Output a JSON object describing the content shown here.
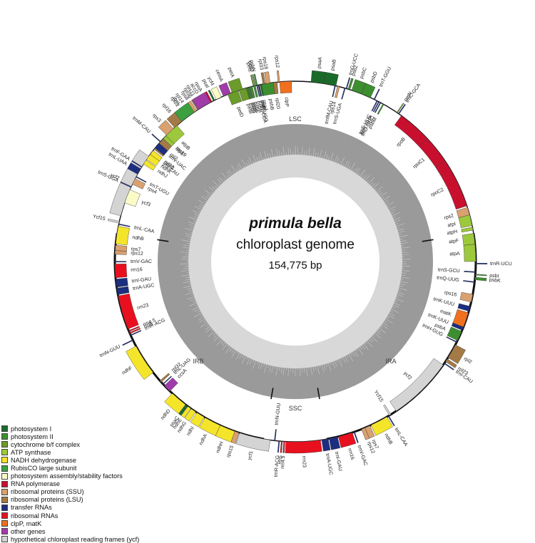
{
  "center": {
    "title": "primula bella",
    "subtitle": "chloroplast genome",
    "size": "154,775 bp"
  },
  "regions": {
    "lsc": "LSC",
    "ira": "IRA",
    "ssc": "SSC",
    "irb": "IRB"
  },
  "colors": {
    "psI": "#1a6b2a",
    "psII": "#3c8f2e",
    "cytb6f": "#6b9b2a",
    "atp": "#9cc83c",
    "ndh": "#f5e52a",
    "rbc": "#3aa040",
    "ycf34": "#fbfbc8",
    "rpo": "#c8102e",
    "rps": "#d9a070",
    "rpl": "#a37a45",
    "trn": "#1c2e80",
    "rrn": "#e8101f",
    "clp": "#f07020",
    "other": "#a03ca8",
    "ycf": "#d4d4d4"
  },
  "legend": [
    {
      "label": "photosystem I",
      "color": "#1a6b2a"
    },
    {
      "label": "photosystem II",
      "color": "#3c8f2e"
    },
    {
      "label": "cytochrome b/f complex",
      "color": "#6b9b2a"
    },
    {
      "label": "ATP synthase",
      "color": "#9cc83c"
    },
    {
      "label": "NADH dehydrogenase",
      "color": "#f5e52a"
    },
    {
      "label": "RubisCO large subunit",
      "color": "#3aa040"
    },
    {
      "label": "photosystem assembly/stability factors",
      "color": "#fbfbc8"
    },
    {
      "label": "RNA polymerase",
      "color": "#c8102e"
    },
    {
      "label": "ribosomal proteins (SSU)",
      "color": "#d9a070"
    },
    {
      "label": "ribosomal proteins (LSU)",
      "color": "#a37a45"
    },
    {
      "label": "transfer RNAs",
      "color": "#1c2e80"
    },
    {
      "label": "ribosomal RNAs",
      "color": "#e8101f"
    },
    {
      "label": "clpP, matK",
      "color": "#f07020"
    },
    {
      "label": "other genes",
      "color": "#a03ca8"
    },
    {
      "label": "hypothetical chloroplast reading frames (ycf)",
      "color": "#d4d4d4"
    }
  ],
  "genes": [
    {
      "name": "psaA",
      "color": "psI",
      "start": 5,
      "end": 9,
      "side": "out"
    },
    {
      "name": "psaB",
      "color": "psI",
      "start": 9,
      "end": 13,
      "side": "out"
    },
    {
      "name": "rps14",
      "color": "rps",
      "start": 13.5,
      "end": 14.2,
      "side": "in"
    },
    {
      "name": "trnfM-CAU",
      "color": "trn",
      "start": 12.6,
      "end": 12.9,
      "side": "in"
    },
    {
      "name": "trnS-UGA",
      "color": "trn",
      "start": 15.8,
      "end": 16.1,
      "side": "in"
    },
    {
      "name": "trnG-UCC",
      "color": "trn",
      "start": 16.3,
      "end": 16.6,
      "side": "out"
    },
    {
      "name": "psbZ",
      "color": "psII",
      "start": 17.0,
      "end": 17.6,
      "side": "out"
    },
    {
      "name": "psbC",
      "color": "psII",
      "start": 18.2,
      "end": 21.5,
      "side": "out"
    },
    {
      "name": "psbD",
      "color": "psII",
      "start": 21.5,
      "end": 24.6,
      "side": "out"
    },
    {
      "name": "trnT-GGU",
      "color": "trn",
      "start": 25.8,
      "end": 26.1,
      "side": "out"
    },
    {
      "name": "trnE-UUC",
      "color": "trn",
      "start": 26.8,
      "end": 27.1,
      "side": "in"
    },
    {
      "name": "trnY-GUA",
      "color": "trn",
      "start": 27.4,
      "end": 27.7,
      "side": "in"
    },
    {
      "name": "trnD-GUC",
      "color": "trn",
      "start": 28.0,
      "end": 28.3,
      "side": "in"
    },
    {
      "name": "psbM",
      "color": "psII",
      "start": 29.0,
      "end": 29.4,
      "side": "in"
    },
    {
      "name": "petN",
      "color": "cytb6f",
      "start": 34.2,
      "end": 34.5,
      "side": "out"
    },
    {
      "name": "trnC-GCA",
      "color": "trn",
      "start": 34.8,
      "end": 35.1,
      "side": "out"
    },
    {
      "name": "rpoB",
      "color": "rpo",
      "start": 36,
      "end": 47,
      "side": "in"
    },
    {
      "name": "rpoC1",
      "color": "rpo",
      "start": 47,
      "end": 56,
      "side": "in"
    },
    {
      "name": "rpoC2",
      "color": "rpo",
      "start": 56,
      "end": 72,
      "side": "in"
    },
    {
      "name": "rps2",
      "color": "rps",
      "start": 72.5,
      "end": 75,
      "side": "in"
    },
    {
      "name": "atpI",
      "color": "atp",
      "start": 75,
      "end": 78.5,
      "side": "in"
    },
    {
      "name": "atpH",
      "color": "atp",
      "start": 79,
      "end": 80,
      "side": "in"
    },
    {
      "name": "atpF",
      "color": "atp",
      "start": 81,
      "end": 84.5,
      "side": "in"
    },
    {
      "name": "atpA",
      "color": "atp",
      "start": 84.5,
      "end": 90,
      "side": "in"
    },
    {
      "name": "trnR-UCU",
      "color": "trn",
      "start": 90.5,
      "end": 90.8,
      "side": "out"
    },
    {
      "name": "psbI",
      "color": "psII",
      "start": 94,
      "end": 94.3,
      "side": "out"
    },
    {
      "name": "psbK",
      "color": "psII",
      "start": 95,
      "end": 95.8,
      "side": "out"
    },
    {
      "name": "trnS-GCU",
      "color": "trn",
      "start": 93.2,
      "end": 93.5,
      "side": "in"
    },
    {
      "name": "trnQ-UUG",
      "color": "trn",
      "start": 96.4,
      "end": 96.7,
      "side": "in"
    },
    {
      "name": "rps16",
      "color": "rps",
      "start": 100.5,
      "end": 103,
      "side": "in"
    },
    {
      "name": "trnK-UUU",
      "color": "trn",
      "start": 104.4,
      "end": 106,
      "side": "in"
    },
    {
      "name": "matK",
      "color": "clp",
      "start": 106.5,
      "end": 111.3,
      "side": "in"
    },
    {
      "name": "trnK-UUU",
      "color": "trn",
      "start": 111.3,
      "end": 112.4,
      "side": "in"
    },
    {
      "name": "psbA",
      "color": "psII",
      "start": 112.8,
      "end": 116,
      "side": "in"
    },
    {
      "name": "trnH-GUG",
      "color": "trn",
      "start": 116.4,
      "end": 116.7,
      "side": "in"
    },
    {
      "name": "rpl2",
      "color": "rpl",
      "start": 117.5,
      "end": 122.2,
      "side": "out"
    },
    {
      "name": "rpl23",
      "color": "rpl",
      "start": 122.7,
      "end": 123.7,
      "side": "out"
    },
    {
      "name": "trnI-CAU",
      "color": "trn",
      "start": 124.2,
      "end": 124.5,
      "side": "out"
    },
    {
      "name": "ycf2",
      "color": "ycf",
      "start": 125,
      "end": 146,
      "side": "in"
    },
    {
      "name": "Ycf15",
      "color": "ycf",
      "start": 148,
      "end": 148.6,
      "side": "in"
    },
    {
      "name": "trnL-CAA",
      "color": "trn",
      "start": 148.8,
      "end": 149.1,
      "side": "out"
    },
    {
      "name": "ndhB",
      "color": "ndh",
      "start": 149.5,
      "end": 155.2,
      "side": "out"
    },
    {
      "name": "rps7",
      "color": "rps",
      "start": 155.6,
      "end": 157.3,
      "side": "out"
    },
    {
      "name": "rps12",
      "color": "rps",
      "start": 157.3,
      "end": 158.5,
      "side": "out"
    },
    {
      "name": "trnV-GAC",
      "color": "trn",
      "start": 160.8,
      "end": 161.1,
      "side": "out"
    },
    {
      "name": "rrn16",
      "color": "rrn",
      "start": 161.6,
      "end": 166.2,
      "side": "out"
    },
    {
      "name": "trnI-GAU",
      "color": "trn",
      "start": 166.5,
      "end": 169.2,
      "side": "out"
    },
    {
      "name": "trnA-UGC",
      "color": "trn",
      "start": 169.5,
      "end": 171.6,
      "side": "out"
    },
    {
      "name": "rrn23",
      "color": "rrn",
      "start": 172,
      "end": 183,
      "side": "out"
    },
    {
      "name": "rrn4.5",
      "color": "rrn",
      "start": 183.3,
      "end": 183.7,
      "side": "out"
    },
    {
      "name": "rrn5",
      "color": "rrn",
      "start": 184.1,
      "end": 184.5,
      "side": "out"
    },
    {
      "name": "trnR-ACG",
      "color": "trn",
      "start": 185,
      "end": 185.3,
      "side": "out"
    },
    {
      "name": "trnN-GUU",
      "color": "trn",
      "start": 186.4,
      "end": 186.7,
      "side": "in"
    },
    {
      "name": "ycf1",
      "color": "ycf",
      "start": 188,
      "end": 198,
      "side": "out"
    },
    {
      "name": "rps15",
      "color": "rps",
      "start": 198.2,
      "end": 199.6,
      "side": "out"
    },
    {
      "name": "ndhH",
      "color": "ndh",
      "start": 199.6,
      "end": 204.6,
      "side": "out"
    },
    {
      "name": "ndhA",
      "color": "ndh",
      "start": 204.6,
      "end": 210,
      "side": "out"
    },
    {
      "name": "ndhI",
      "color": "ndh",
      "start": 210.3,
      "end": 213.1,
      "side": "out"
    },
    {
      "name": "ndhG",
      "color": "ndh",
      "start": 213.5,
      "end": 215.2,
      "side": "out"
    },
    {
      "name": "ndhE",
      "color": "ndh",
      "start": 215.4,
      "end": 216.5,
      "side": "out"
    },
    {
      "name": "psaC",
      "color": "psI",
      "start": 216.6,
      "end": 217.4,
      "side": "out"
    },
    {
      "name": "ndhD",
      "color": "ndh",
      "start": 217.5,
      "end": 223,
      "side": "out"
    },
    {
      "name": "ccsA",
      "color": "other",
      "start": 224,
      "end": 226.5,
      "side": "in"
    },
    {
      "name": "trnL-UAG",
      "color": "trn",
      "start": 227,
      "end": 227.3,
      "side": "in"
    },
    {
      "name": "rpl32",
      "color": "rpl",
      "start": 228,
      "end": 228.6,
      "side": "in"
    },
    {
      "name": "ndhF",
      "color": "ndh",
      "start": 232,
      "end": 242,
      "side": "out"
    },
    {
      "name": "trnN-GUU",
      "color": "trn",
      "start": 244,
      "end": 244.3,
      "side": "out"
    },
    {
      "name": "trnR-ACG",
      "color": "trn",
      "start": 245.7,
      "end": 246,
      "side": "in"
    },
    {
      "name": "rrn5",
      "color": "rrn",
      "start": 246.4,
      "end": 246.8,
      "side": "in"
    },
    {
      "name": "rrn4.5",
      "color": "rrn",
      "start": 247.1,
      "end": 247.5,
      "side": "in"
    },
    {
      "name": "rrn23",
      "color": "rrn",
      "start": 248,
      "end": 259,
      "side": "in"
    },
    {
      "name": "trnA-UGC",
      "color": "trn",
      "start": 259.4,
      "end": 261.5,
      "side": "in"
    },
    {
      "name": "trnI-GAU",
      "color": "trn",
      "start": 261.8,
      "end": 264.4,
      "side": "in"
    },
    {
      "name": "rrn16",
      "color": "rrn",
      "start": 264.8,
      "end": 269.2,
      "side": "in"
    },
    {
      "name": "trnV-GAC",
      "color": "trn",
      "start": 269.8,
      "end": 270.1,
      "side": "in"
    },
    {
      "name": "rps12",
      "color": "rps",
      "start": 272.3,
      "end": 273.5,
      "side": "in"
    },
    {
      "name": "rps7",
      "color": "rps",
      "start": 273.5,
      "end": 275.2,
      "side": "in"
    },
    {
      "name": "ndhB",
      "color": "ndh",
      "start": 275.6,
      "end": 281.3,
      "side": "in"
    },
    {
      "name": "trnL-CAA",
      "color": "trn",
      "start": 281.8,
      "end": 282.1,
      "side": "in"
    },
    {
      "name": "Ycf15",
      "color": "ycf",
      "start": 282.3,
      "end": 282.9,
      "side": "out"
    },
    {
      "name": "ycf2",
      "color": "ycf",
      "start": 284.7,
      "end": 305.7,
      "side": "out"
    },
    {
      "name": "trnI-CAU",
      "color": "trn",
      "start": 306.3,
      "end": 306.6,
      "side": "in"
    },
    {
      "name": "rpl23",
      "color": "rpl",
      "start": 307,
      "end": 308,
      "side": "in"
    },
    {
      "name": "rpl2",
      "color": "rpl",
      "start": 308.5,
      "end": 313,
      "side": "in"
    },
    {
      "name": "rpl16",
      "color": "rpl",
      "start": 318,
      "end": 322,
      "side": "out"
    },
    {
      "name": "rps19",
      "color": "rps",
      "start": 313.5,
      "end": 314.3,
      "side": "in"
    },
    {
      "name": "rps3",
      "color": "rps",
      "start": 314.5,
      "end": 317.5,
      "side": "out"
    },
    {
      "name": "rpl22",
      "color": "rpl",
      "start": 322.4,
      "end": 323.6,
      "side": "out"
    },
    {
      "name": "rpl14",
      "color": "rpl",
      "start": 324,
      "end": 325.4,
      "side": "out"
    },
    {
      "name": "rps8",
      "color": "rps",
      "start": 325.8,
      "end": 326.9,
      "side": "out"
    },
    {
      "name": "rpl36",
      "color": "rpl",
      "start": 327.2,
      "end": 327.6,
      "side": "out"
    },
    {
      "name": "rps11",
      "color": "rps",
      "start": 327.9,
      "end": 329.1,
      "side": "out"
    },
    {
      "name": "rpoA",
      "color": "rpo",
      "start": 329.5,
      "end": 332.5,
      "side": "out"
    },
    {
      "name": "petD",
      "color": "cytb6f",
      "start": 338,
      "end": 341.5,
      "side": "in"
    },
    {
      "name": "petB",
      "color": "cytb6f",
      "start": 341.8,
      "end": 344.8,
      "side": "in"
    },
    {
      "name": "psbH",
      "color": "psII",
      "start": 346.6,
      "end": 347.2,
      "side": "in"
    },
    {
      "name": "psbN",
      "color": "psII",
      "start": 347.5,
      "end": 347.9,
      "side": "out"
    },
    {
      "name": "psbT",
      "color": "psII",
      "start": 348.2,
      "end": 348.6,
      "side": "in"
    },
    {
      "name": "psbB",
      "color": "psII",
      "start": 349,
      "end": 353.6,
      "side": "in"
    }
  ],
  "genes_extra": [
    {
      "name": "clpP",
      "color": "clp",
      "start": 1.2,
      "end": 5.0,
      "side": "in",
      "alt": true
    },
    {
      "name": "rps12",
      "color": "rps",
      "start": 5.0,
      "end": 5.5,
      "side": "out",
      "alt": true
    },
    {
      "name": "rpl20",
      "color": "rpl",
      "start": 5.8,
      "end": 7.0,
      "side": "in",
      "alt": true
    },
    {
      "name": "rps18",
      "color": "rps",
      "start": 8.0,
      "end": 9.3,
      "side": "out",
      "alt": true
    },
    {
      "name": "rpl33",
      "color": "rpl",
      "start": 9.6,
      "end": 10.3,
      "side": "out",
      "alt": true
    },
    {
      "name": "psaJ",
      "color": "psI",
      "start": 10.8,
      "end": 11.2,
      "side": "in",
      "alt": true
    },
    {
      "name": "trnP-UGG",
      "color": "trn",
      "start": 11.6,
      "end": 11.9,
      "side": "in",
      "alt": true
    },
    {
      "name": "trnW-CCA",
      "color": "trn",
      "start": 12.1,
      "end": 12.4,
      "side": "in",
      "alt": true
    },
    {
      "name": "petG",
      "color": "cytb6f",
      "start": 12.7,
      "end": 13.0,
      "side": "out",
      "alt": true
    },
    {
      "name": "petL",
      "color": "cytb6f",
      "start": 13.2,
      "end": 13.5,
      "side": "out",
      "alt": true
    },
    {
      "name": "psbE",
      "color": "psII",
      "start": 13.8,
      "end": 14.5,
      "side": "in",
      "alt": true
    },
    {
      "name": "psbF",
      "color": "psII",
      "start": 14.6,
      "end": 14.9,
      "side": "in",
      "alt": true
    },
    {
      "name": "psbL",
      "color": "psII",
      "start": 15.0,
      "end": 15.3,
      "side": "in",
      "alt": true
    },
    {
      "name": "psbJ",
      "color": "psII",
      "start": 15.5,
      "end": 15.8,
      "side": "in",
      "alt": true
    },
    {
      "name": "petA",
      "color": "cytb6f",
      "start": 17,
      "end": 20.5,
      "side": "out",
      "alt": true
    },
    {
      "name": "cemA",
      "color": "other",
      "start": 21,
      "end": 23.5,
      "side": "out",
      "alt": true
    },
    {
      "name": "ycf4",
      "color": "ycf34",
      "start": 24.2,
      "end": 26,
      "side": "out",
      "alt": true
    },
    {
      "name": "psaI",
      "color": "psI",
      "start": 26.5,
      "end": 27,
      "side": "out",
      "alt": true
    },
    {
      "name": "accD",
      "color": "other",
      "start": 28,
      "end": 32.5,
      "side": "out",
      "alt": true
    },
    {
      "name": "rbcL",
      "color": "rbc",
      "start": 34,
      "end": 39,
      "side": "out",
      "alt": true
    },
    {
      "name": "atpB",
      "color": "atp",
      "start": 41,
      "end": 45.8,
      "side": "in",
      "alt": true
    },
    {
      "name": "atpE",
      "color": "atp",
      "start": 45.8,
      "end": 47,
      "side": "in",
      "alt": true
    },
    {
      "name": "trnM-CAU",
      "color": "trn",
      "start": 48.2,
      "end": 48.5,
      "side": "out",
      "alt": true
    },
    {
      "name": "trnV-UAC",
      "color": "trn",
      "start": 49,
      "end": 51,
      "side": "in",
      "alt": true
    },
    {
      "name": "ndhC",
      "color": "ndh",
      "start": 52,
      "end": 53.5,
      "side": "in",
      "alt": true
    },
    {
      "name": "ndhK",
      "color": "ndh",
      "start": 53.5,
      "end": 55.5,
      "side": "in",
      "alt": true
    },
    {
      "name": "ndhJ",
      "color": "ndh",
      "start": 55.8,
      "end": 57.3,
      "side": "in",
      "alt": true
    },
    {
      "name": "trnF-GAA",
      "color": "trn",
      "start": 58.2,
      "end": 58.5,
      "side": "out",
      "alt": true
    },
    {
      "name": "trnL-UAA",
      "color": "trn",
      "start": 59,
      "end": 61,
      "side": "out",
      "alt": true
    },
    {
      "name": "trnT-UGU",
      "color": "trn",
      "start": 61.8,
      "end": 62.1,
      "side": "in",
      "alt": true
    },
    {
      "name": "rps4",
      "color": "rps",
      "start": 62.6,
      "end": 64.6,
      "side": "in",
      "alt": true
    },
    {
      "name": "trnS-GGA",
      "color": "trn",
      "start": 65.4,
      "end": 65.7,
      "side": "out",
      "alt": true
    },
    {
      "name": "ycf3",
      "color": "ycf34",
      "start": 66.5,
      "end": 71,
      "side": "in",
      "alt": true
    }
  ],
  "junctions": [
    {
      "name": "jla",
      "angle": 81
    },
    {
      "name": "jas",
      "angle": 170
    },
    {
      "name": "jsb",
      "angle": 190
    },
    {
      "name": "jbl",
      "angle": 279
    }
  ]
}
